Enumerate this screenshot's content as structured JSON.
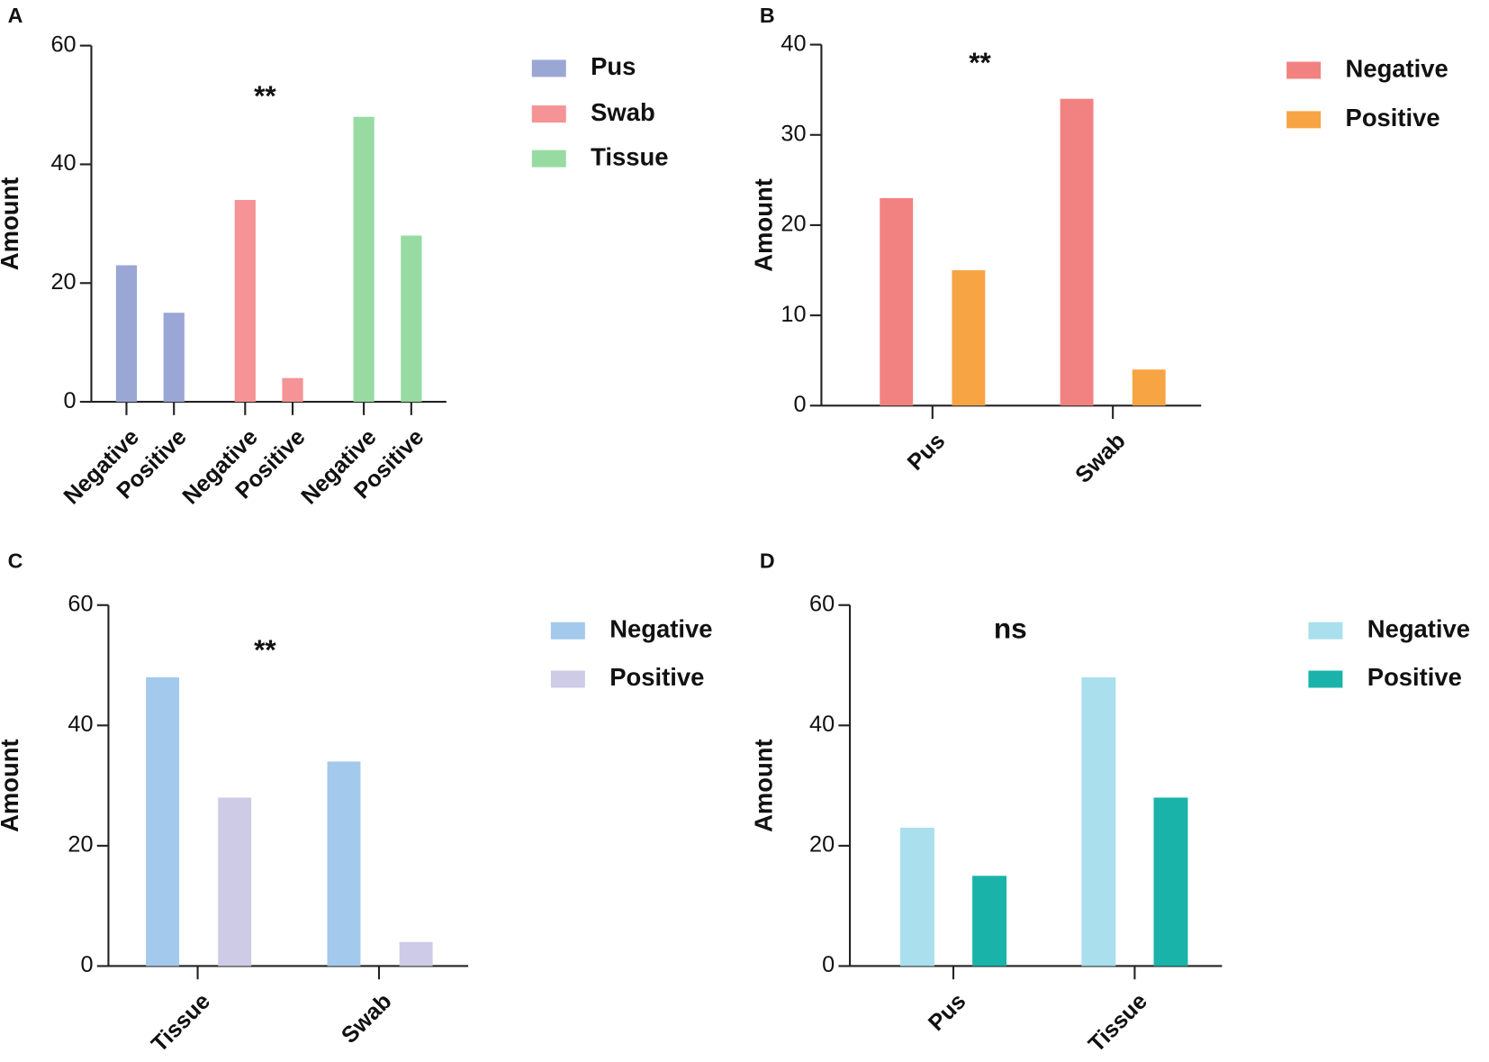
{
  "chart_data": [
    {
      "type": "bar",
      "label": "A",
      "annotation": "**",
      "ylabel": "Amount",
      "categories": [
        "Negative",
        "Positive",
        "Negative",
        "Positive",
        "Negative",
        "Positive"
      ],
      "series": [
        {
          "name": "Pus",
          "color": "#9aa6d4",
          "values": [
            23,
            15,
            null,
            null,
            null,
            null
          ]
        },
        {
          "name": "Swab",
          "color": "#f59396",
          "values": [
            null,
            null,
            34,
            4,
            null,
            null
          ]
        },
        {
          "name": "Tissue",
          "color": "#97dba2",
          "values": [
            null,
            null,
            null,
            null,
            48,
            28
          ]
        }
      ],
      "ylim": [
        0,
        60
      ],
      "yticks": [
        0,
        20,
        40,
        60
      ]
    },
    {
      "type": "bar",
      "label": "B",
      "annotation": "**",
      "ylabel": "Amount",
      "categories": [
        "Pus",
        "Swab"
      ],
      "series": [
        {
          "name": "Negative",
          "color": "#f28282",
          "values": [
            23,
            34
          ]
        },
        {
          "name": "Positive",
          "color": "#f7a444",
          "values": [
            15,
            4
          ]
        }
      ],
      "ylim": [
        0,
        40
      ],
      "yticks": [
        0,
        10,
        20,
        30,
        40
      ]
    },
    {
      "type": "bar",
      "label": "C",
      "annotation": "**",
      "ylabel": "Amount",
      "categories": [
        "Tissue",
        "Swab"
      ],
      "series": [
        {
          "name": "Negative",
          "color": "#a3c9ec",
          "values": [
            48,
            34
          ]
        },
        {
          "name": "Positive",
          "color": "#cdcbe6",
          "values": [
            28,
            4
          ]
        }
      ],
      "ylim": [
        0,
        60
      ],
      "yticks": [
        0,
        20,
        40,
        60
      ]
    },
    {
      "type": "bar",
      "label": "D",
      "annotation": "ns",
      "ylabel": "Amount",
      "categories": [
        "Pus",
        "Tissue"
      ],
      "series": [
        {
          "name": "Negative",
          "color": "#aadfee",
          "values": [
            23,
            48
          ]
        },
        {
          "name": "Positive",
          "color": "#1ab3a9",
          "values": [
            15,
            28
          ]
        }
      ],
      "ylim": [
        0,
        60
      ],
      "yticks": [
        0,
        20,
        40,
        60
      ]
    }
  ]
}
